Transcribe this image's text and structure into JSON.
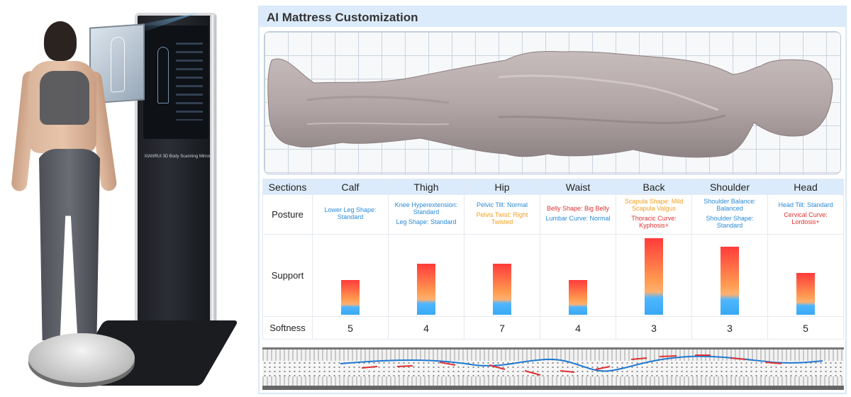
{
  "title": "AI Mattress Customization",
  "product_caption": "XIANRUI 3D Body Scanning Mirror",
  "table": {
    "row_labels": {
      "sections": "Sections",
      "posture": "Posture",
      "support": "Support",
      "softness": "Softness"
    },
    "sections": [
      {
        "name": "Calf",
        "posture": [
          {
            "text": "Lower Leg Shape: Standard",
            "color": "#2a8ad6"
          }
        ],
        "support": 0.45,
        "softness": "5"
      },
      {
        "name": "Thigh",
        "posture": [
          {
            "text": "Knee Hyperextension: Standard",
            "color": "#2a8ad6"
          },
          {
            "text": "Leg Shape: Standard",
            "color": "#2a8ad6"
          }
        ],
        "support": 0.67,
        "softness": "4"
      },
      {
        "name": "Hip",
        "posture": [
          {
            "text": "Pelvic Tilt: Normal",
            "color": "#2a8ad6"
          },
          {
            "text": "Pelvis Twist: Right Twisted",
            "color": "#f0a020"
          }
        ],
        "support": 0.67,
        "softness": "7"
      },
      {
        "name": "Waist",
        "posture": [
          {
            "text": "Belly Shape: Big Belly",
            "color": "#e03030"
          },
          {
            "text": "Lumbar Curve: Normal",
            "color": "#2a8ad6"
          }
        ],
        "support": 0.45,
        "softness": "4"
      },
      {
        "name": "Back",
        "posture": [
          {
            "text": "Scapula Shape: Mild Scapula Valgus",
            "color": "#f0a020"
          },
          {
            "text": "Thoracic Curve: Kyphosis+",
            "color": "#e03030"
          }
        ],
        "support": 1.0,
        "softness": "3"
      },
      {
        "name": "Shoulder",
        "posture": [
          {
            "text": "Shoulder Balance: Balanced",
            "color": "#2a8ad6"
          },
          {
            "text": "Shoulder Shape: Standard",
            "color": "#2a8ad6"
          }
        ],
        "support": 0.89,
        "softness": "3"
      },
      {
        "name": "Head",
        "posture": [
          {
            "text": "Head Tilt: Standard",
            "color": "#2a8ad6"
          },
          {
            "text": "Cervical Curve: Lordosis+",
            "color": "#e03030"
          }
        ],
        "support": 0.55,
        "softness": "5"
      }
    ]
  },
  "colors": {
    "header_bg": "#dcebfb",
    "good": "#2a8ad6",
    "warning": "#f0a020",
    "alert": "#e03030"
  }
}
